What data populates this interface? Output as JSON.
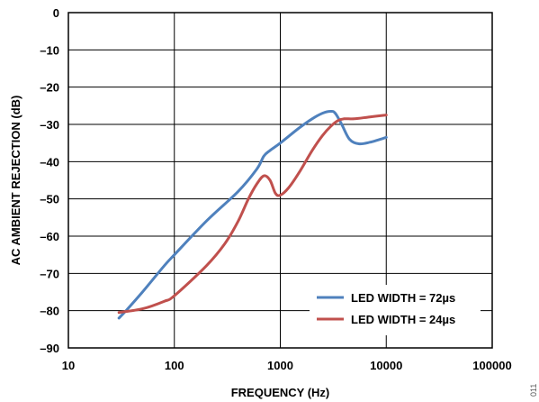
{
  "chart_data": {
    "type": "line",
    "xlabel": "FREQUENCY (Hz)",
    "ylabel": "AC AMBIENT REJECTION (dB)",
    "xscale": "log",
    "xlim": [
      10,
      100000
    ],
    "ylim": [
      -90,
      0
    ],
    "grid": true,
    "legend_position": "bottom-right",
    "x_ticks": [
      10,
      100,
      1000,
      10000,
      100000
    ],
    "x_tick_labels": [
      "10",
      "100",
      "1000",
      "10000",
      "100000"
    ],
    "y_ticks": [
      0,
      -10,
      -20,
      -30,
      -40,
      -50,
      -60,
      -70,
      -80,
      -90
    ],
    "y_tick_labels": [
      "0",
      "–10",
      "–20",
      "–30",
      "–40",
      "–50",
      "–60",
      "–70",
      "–80",
      "–90"
    ],
    "series": [
      {
        "name": "LED WIDTH = 72µs",
        "color": "#4f81bd",
        "points": [
          [
            30,
            -82
          ],
          [
            35,
            -80
          ],
          [
            50,
            -75
          ],
          [
            80,
            -68
          ],
          [
            100,
            -65
          ],
          [
            200,
            -56
          ],
          [
            400,
            -48
          ],
          [
            600,
            -42
          ],
          [
            700,
            -38.5
          ],
          [
            800,
            -37
          ],
          [
            1000,
            -35
          ],
          [
            1500,
            -31
          ],
          [
            2000,
            -28.5
          ],
          [
            2500,
            -27
          ],
          [
            3000,
            -26.5
          ],
          [
            3300,
            -27
          ],
          [
            3800,
            -30
          ],
          [
            4500,
            -34
          ],
          [
            5500,
            -35.2
          ],
          [
            7000,
            -34.8
          ],
          [
            10000,
            -33.5
          ]
        ]
      },
      {
        "name": "LED WIDTH = 24µs",
        "color": "#c0504d",
        "points": [
          [
            30,
            -80.5
          ],
          [
            50,
            -79.5
          ],
          [
            80,
            -77.5
          ],
          [
            100,
            -76
          ],
          [
            200,
            -68
          ],
          [
            300,
            -62
          ],
          [
            400,
            -56
          ],
          [
            500,
            -50
          ],
          [
            600,
            -46
          ],
          [
            700,
            -43.8
          ],
          [
            800,
            -45
          ],
          [
            900,
            -48.5
          ],
          [
            1000,
            -49
          ],
          [
            1200,
            -47
          ],
          [
            1500,
            -43
          ],
          [
            2000,
            -37
          ],
          [
            2500,
            -33
          ],
          [
            3000,
            -30.5
          ],
          [
            3500,
            -29
          ],
          [
            4000,
            -28.5
          ],
          [
            5000,
            -28.5
          ],
          [
            7000,
            -28
          ],
          [
            10000,
            -27.5
          ]
        ]
      }
    ]
  },
  "figure_id": "011"
}
